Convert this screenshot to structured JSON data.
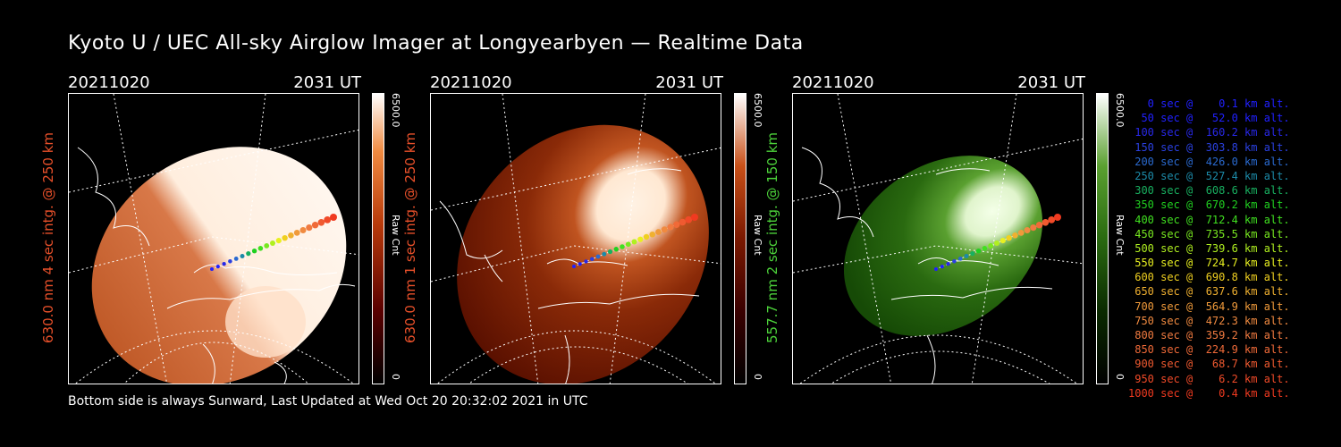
{
  "title": "Kyoto U / UEC All-sky Airglow Imager at Longyearbyen — Realtime Data",
  "panels": [
    {
      "date": "20211020",
      "time": "2031 UT",
      "ylabel": "630.0 nm 4 sec intg. @ 250 km",
      "ylabel_color": "#e8502a",
      "colorbar_max": "6500.0",
      "colorbar_min": "0",
      "colorbar_unit": "Raw Cnt",
      "palette": [
        "#5a0000",
        "#b83a0a",
        "#f08a40",
        "#ffe8d0",
        "#ffffff"
      ]
    },
    {
      "date": "20211020",
      "time": "2031 UT",
      "ylabel": "630.0 nm 1 sec intg. @ 250 km",
      "ylabel_color": "#e8502a",
      "colorbar_max": "6500.0",
      "colorbar_min": "0",
      "colorbar_unit": "Raw Cnt",
      "palette": [
        "#3a0000",
        "#7a1800",
        "#c85018",
        "#ffd8b8",
        "#ffffff"
      ]
    },
    {
      "date": "20211020",
      "time": "2031 UT",
      "ylabel": "557.7 nm 2 sec intg. @ 150 km",
      "ylabel_color": "#4cd23a",
      "colorbar_max": "6500.0",
      "colorbar_min": "0",
      "colorbar_unit": "Raw Cnt",
      "palette": [
        "#0a2a00",
        "#2a6a10",
        "#5aa030",
        "#d8f0c8",
        "#ffffff"
      ]
    }
  ],
  "footer": "Bottom side is always Sunward, Last Updated at Wed Oct 20 20:32:02 2021 in UTC",
  "legend": [
    {
      "text": "   0 sec @    0.1 km alt.",
      "color": "#2020ff"
    },
    {
      "text": "  50 sec @   52.0 km alt.",
      "color": "#2020ff"
    },
    {
      "text": " 100 sec @  160.2 km alt.",
      "color": "#2828e8"
    },
    {
      "text": " 150 sec @  303.8 km alt.",
      "color": "#2a40e0"
    },
    {
      "text": " 200 sec @  426.0 km alt.",
      "color": "#2a6ad0"
    },
    {
      "text": " 250 sec @  527.4 km alt.",
      "color": "#1c8aa8"
    },
    {
      "text": " 300 sec @  608.6 km alt.",
      "color": "#18b060"
    },
    {
      "text": " 350 sec @  670.2 km alt.",
      "color": "#20d020"
    },
    {
      "text": " 400 sec @  712.4 km alt.",
      "color": "#40e020"
    },
    {
      "text": " 450 sec @  735.5 km alt.",
      "color": "#78e820"
    },
    {
      "text": " 500 sec @  739.6 km alt.",
      "color": "#b0f020"
    },
    {
      "text": " 550 sec @  724.7 km alt.",
      "color": "#e8f020"
    },
    {
      "text": " 600 sec @  690.8 km alt.",
      "color": "#f0d020"
    },
    {
      "text": " 650 sec @  637.6 km alt.",
      "color": "#f0b030"
    },
    {
      "text": " 700 sec @  564.9 km alt.",
      "color": "#f09a3a"
    },
    {
      "text": " 750 sec @  472.3 km alt.",
      "color": "#f08a40"
    },
    {
      "text": " 800 sec @  359.2 km alt.",
      "color": "#f07a40"
    },
    {
      "text": " 850 sec @  224.9 km alt.",
      "color": "#f06a38"
    },
    {
      "text": " 900 sec @   68.7 km alt.",
      "color": "#f05a30"
    },
    {
      "text": " 950 sec @    6.2 km alt.",
      "color": "#f04a28"
    },
    {
      "text": "1000 sec @    0.4 km alt.",
      "color": "#f03a20"
    }
  ]
}
